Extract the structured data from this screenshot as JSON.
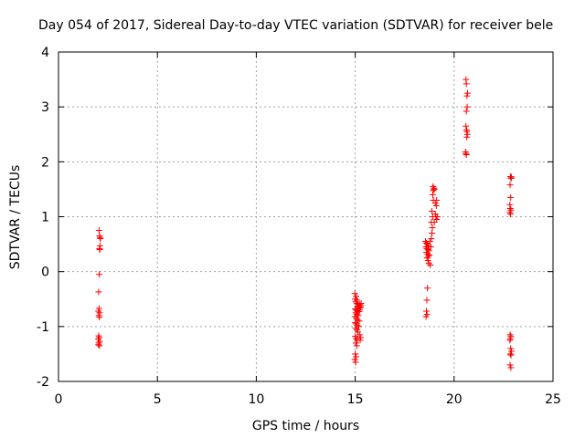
{
  "chart_data": {
    "type": "scatter",
    "title": "Day 054 of 2017, Sidereal Day-to-day VTEC variation (SDTVAR) for receiver bele",
    "xlabel": "GPS time / hours",
    "ylabel": "SDTVAR / TECUs",
    "xlim": [
      0,
      25
    ],
    "ylim": [
      -2,
      4
    ],
    "xticks": [
      0,
      5,
      10,
      15,
      20,
      25
    ],
    "yticks": [
      -2,
      -1,
      0,
      1,
      2,
      3,
      4
    ],
    "grid": true,
    "marker": "plus",
    "color": "#ff0000",
    "series": [
      {
        "name": "SDTVAR",
        "points": [
          [
            2.05,
            0.75
          ],
          [
            2.08,
            0.65
          ],
          [
            2.1,
            0.62
          ],
          [
            2.12,
            0.6
          ],
          [
            2.1,
            0.47
          ],
          [
            2.07,
            0.42
          ],
          [
            2.09,
            0.4
          ],
          [
            2.06,
            -0.05
          ],
          [
            2.03,
            -0.37
          ],
          [
            2.05,
            -0.67
          ],
          [
            2.02,
            -0.72
          ],
          [
            2.08,
            -0.75
          ],
          [
            2.04,
            -0.8
          ],
          [
            2.07,
            -0.83
          ],
          [
            2.03,
            -1.17
          ],
          [
            2.06,
            -1.2
          ],
          [
            2.01,
            -1.23
          ],
          [
            2.08,
            -1.27
          ],
          [
            2.04,
            -1.3
          ],
          [
            2.02,
            -1.33
          ],
          [
            2.07,
            -1.35
          ],
          [
            14.98,
            -0.4
          ],
          [
            15.05,
            -0.45
          ],
          [
            15.0,
            -0.5
          ],
          [
            15.1,
            -0.52
          ],
          [
            15.02,
            -0.55
          ],
          [
            15.08,
            -0.58
          ],
          [
            15.15,
            -0.6
          ],
          [
            15.22,
            -0.6
          ],
          [
            15.28,
            -0.62
          ],
          [
            15.12,
            -0.63
          ],
          [
            15.18,
            -0.65
          ],
          [
            15.25,
            -0.66
          ],
          [
            15.0,
            -0.68
          ],
          [
            15.05,
            -0.7
          ],
          [
            15.1,
            -0.72
          ],
          [
            15.2,
            -0.73
          ],
          [
            15.03,
            -0.75
          ],
          [
            15.08,
            -0.78
          ],
          [
            15.15,
            -0.8
          ],
          [
            14.98,
            -0.82
          ],
          [
            15.06,
            -0.85
          ],
          [
            15.12,
            -0.88
          ],
          [
            15.2,
            -0.9
          ],
          [
            15.0,
            -0.93
          ],
          [
            15.05,
            -0.95
          ],
          [
            15.1,
            -0.98
          ],
          [
            15.18,
            -1.0
          ],
          [
            15.02,
            -1.03
          ],
          [
            15.08,
            -1.06
          ],
          [
            15.14,
            -1.1
          ],
          [
            15.22,
            -1.15
          ],
          [
            15.0,
            -1.18
          ],
          [
            15.05,
            -1.22
          ],
          [
            15.1,
            -1.25
          ],
          [
            15.28,
            -1.2
          ],
          [
            15.25,
            -1.25
          ],
          [
            15.03,
            -1.3
          ],
          [
            15.08,
            -1.35
          ],
          [
            15.0,
            -1.5
          ],
          [
            15.05,
            -1.55
          ],
          [
            14.98,
            -1.6
          ],
          [
            15.02,
            -1.65
          ],
          [
            15.3,
            -0.58
          ],
          [
            15.26,
            -0.65
          ],
          [
            15.22,
            -0.7
          ],
          [
            15.15,
            -0.68
          ],
          [
            18.55,
            0.55
          ],
          [
            18.6,
            0.52
          ],
          [
            18.65,
            0.5
          ],
          [
            18.7,
            0.47
          ],
          [
            18.58,
            0.45
          ],
          [
            18.62,
            0.42
          ],
          [
            18.68,
            0.4
          ],
          [
            18.72,
            0.38
          ],
          [
            18.6,
            0.35
          ],
          [
            18.66,
            0.32
          ],
          [
            18.7,
            0.28
          ],
          [
            18.63,
            0.25
          ],
          [
            18.68,
            0.2
          ],
          [
            18.72,
            0.15
          ],
          [
            18.8,
            0.12
          ],
          [
            18.75,
            0.3
          ],
          [
            18.82,
            0.45
          ],
          [
            18.78,
            0.55
          ],
          [
            18.85,
            0.6
          ],
          [
            18.88,
            0.7
          ],
          [
            18.9,
            0.8
          ],
          [
            18.85,
            0.9
          ],
          [
            18.92,
            1.0
          ],
          [
            18.88,
            1.1
          ],
          [
            18.95,
            1.3
          ],
          [
            18.92,
            1.4
          ],
          [
            18.95,
            1.48
          ],
          [
            18.98,
            1.52
          ],
          [
            18.93,
            1.55
          ],
          [
            19.0,
            1.5
          ],
          [
            19.05,
            1.25
          ],
          [
            19.1,
            1.2
          ],
          [
            19.12,
            1.3
          ],
          [
            19.05,
            1.05
          ],
          [
            19.08,
            1.0
          ],
          [
            19.12,
            0.95
          ],
          [
            19.0,
            0.9
          ],
          [
            19.15,
            1.0
          ],
          [
            18.65,
            -0.3
          ],
          [
            18.62,
            -0.52
          ],
          [
            18.6,
            -0.72
          ],
          [
            18.63,
            -0.78
          ],
          [
            18.58,
            -0.82
          ],
          [
            20.6,
            3.5
          ],
          [
            20.62,
            3.42
          ],
          [
            20.68,
            3.25
          ],
          [
            20.65,
            3.2
          ],
          [
            20.66,
            3.0
          ],
          [
            20.62,
            2.92
          ],
          [
            20.6,
            2.65
          ],
          [
            20.63,
            2.58
          ],
          [
            20.65,
            2.55
          ],
          [
            20.67,
            2.5
          ],
          [
            20.64,
            2.45
          ],
          [
            20.58,
            2.18
          ],
          [
            20.6,
            2.15
          ],
          [
            20.62,
            2.13
          ],
          [
            22.85,
            1.73
          ],
          [
            22.9,
            1.72
          ],
          [
            22.88,
            1.7
          ],
          [
            22.83,
            1.58
          ],
          [
            22.86,
            1.35
          ],
          [
            22.82,
            1.22
          ],
          [
            22.84,
            1.15
          ],
          [
            22.87,
            1.12
          ],
          [
            22.82,
            1.08
          ],
          [
            22.85,
            1.05
          ],
          [
            22.83,
            -1.15
          ],
          [
            22.87,
            -1.18
          ],
          [
            22.85,
            -1.22
          ],
          [
            22.82,
            -1.25
          ],
          [
            22.86,
            -1.4
          ],
          [
            22.9,
            -1.45
          ],
          [
            22.84,
            -1.5
          ],
          [
            22.88,
            -1.52
          ],
          [
            22.83,
            -1.7
          ],
          [
            22.87,
            -1.75
          ]
        ]
      }
    ]
  }
}
